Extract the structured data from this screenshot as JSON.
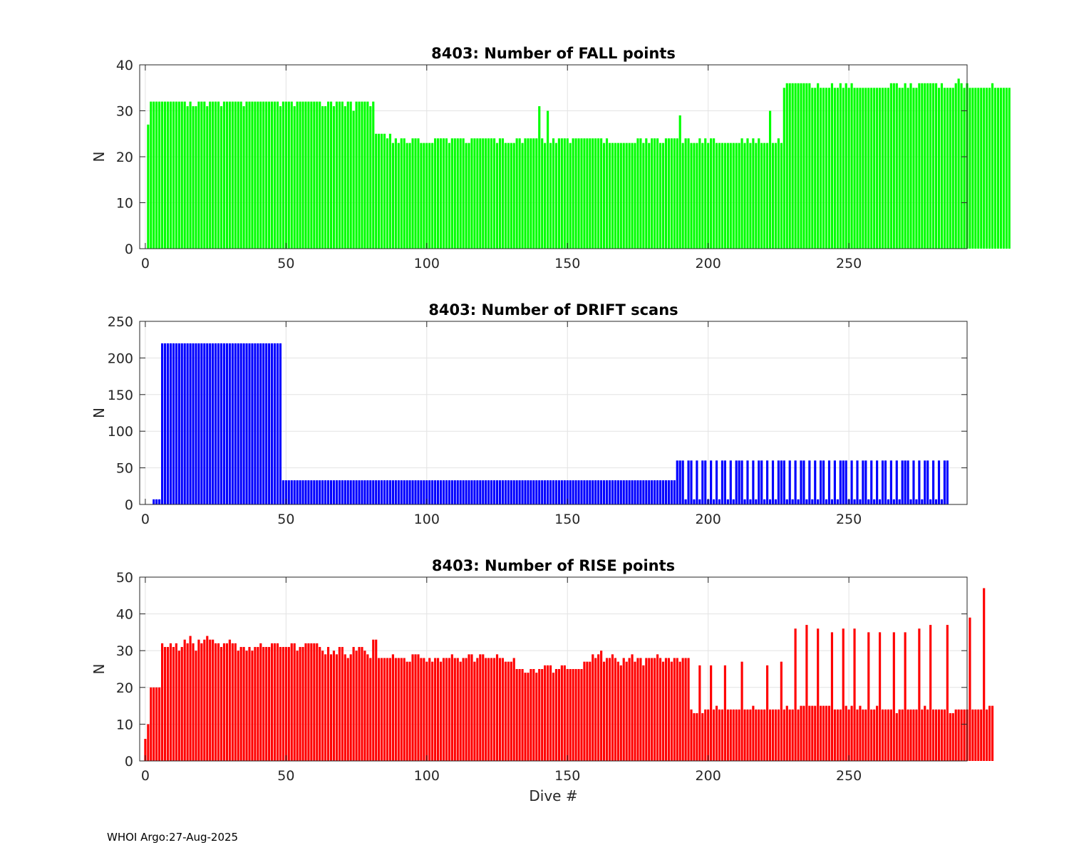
{
  "chart_data": [
    {
      "type": "bar",
      "title": "8403: Number of FALL points",
      "xlabel": "",
      "ylabel": "N",
      "xlim": [
        -2,
        292
      ],
      "ylim": [
        0,
        40
      ],
      "xticks": [
        0,
        50,
        100,
        150,
        200,
        250
      ],
      "yticks": [
        0,
        10,
        20,
        30,
        40
      ],
      "color": "#00ff00",
      "grid": true,
      "x_start": 1,
      "values": [
        27,
        32,
        32,
        32,
        32,
        32,
        32,
        32,
        32,
        32,
        32,
        32,
        32,
        32,
        31,
        32,
        31,
        31,
        32,
        32,
        32,
        31,
        32,
        32,
        32,
        32,
        31,
        32,
        32,
        32,
        32,
        32,
        32,
        32,
        31,
        32,
        32,
        32,
        32,
        32,
        32,
        32,
        32,
        32,
        32,
        32,
        32,
        31,
        32,
        32,
        32,
        32,
        31,
        32,
        32,
        32,
        32,
        32,
        32,
        32,
        32,
        32,
        31,
        31,
        32,
        32,
        31,
        32,
        32,
        32,
        31,
        32,
        32,
        30,
        32,
        32,
        32,
        32,
        32,
        31,
        32,
        25,
        25,
        25,
        25,
        24,
        25,
        23,
        24,
        23,
        24,
        24,
        23,
        23,
        24,
        24,
        24,
        23,
        23,
        23,
        23,
        23,
        24,
        24,
        24,
        24,
        24,
        23,
        24,
        24,
        24,
        24,
        24,
        23,
        23,
        24,
        24,
        24,
        24,
        24,
        24,
        24,
        24,
        24,
        23,
        24,
        24,
        23,
        23,
        23,
        23,
        24,
        24,
        23,
        24,
        24,
        24,
        24,
        24,
        31,
        24,
        23,
        30,
        23,
        24,
        23,
        24,
        24,
        24,
        24,
        23,
        24,
        24,
        24,
        24,
        24,
        24,
        24,
        24,
        24,
        24,
        24,
        23,
        24,
        23,
        23,
        23,
        23,
        23,
        23,
        23,
        23,
        23,
        23,
        24,
        24,
        23,
        24,
        23,
        24,
        24,
        24,
        23,
        23,
        24,
        24,
        24,
        24,
        24,
        29,
        23,
        24,
        24,
        23,
        23,
        23,
        24,
        23,
        24,
        23,
        24,
        24,
        23,
        23,
        23,
        23,
        23,
        23,
        23,
        23,
        23,
        24,
        23,
        24,
        23,
        24,
        23,
        24,
        23,
        23,
        23,
        30,
        23,
        23,
        24,
        23,
        35,
        36,
        36,
        36,
        36,
        36,
        36,
        36,
        36,
        36,
        35,
        35,
        36,
        35,
        35,
        35,
        35,
        36,
        35,
        35,
        36,
        35,
        36,
        35,
        36,
        35,
        35,
        35,
        35,
        35,
        35,
        35,
        35,
        35,
        35,
        35,
        35,
        35,
        36,
        36,
        36,
        35,
        35,
        36,
        35,
        36,
        35,
        35,
        36,
        36,
        36,
        36,
        36,
        36,
        36,
        35,
        36,
        35,
        35,
        35,
        35,
        36,
        37,
        36,
        35,
        36,
        35,
        35,
        35,
        35,
        35,
        35,
        35,
        35,
        36,
        35,
        35,
        35,
        35,
        35,
        35
      ]
    },
    {
      "type": "bar",
      "title": "8403: Number of DRIFT scans",
      "xlabel": "",
      "ylabel": "N",
      "xlim": [
        -2,
        292
      ],
      "ylim": [
        0,
        250
      ],
      "xticks": [
        0,
        50,
        100,
        150,
        200,
        250
      ],
      "yticks": [
        0,
        50,
        100,
        150,
        200,
        250
      ],
      "color": "#0000ff",
      "grid": true,
      "x_start": 1,
      "values": [
        0,
        0,
        7,
        7,
        7,
        220,
        220,
        220,
        220,
        220,
        220,
        220,
        220,
        220,
        220,
        220,
        220,
        220,
        220,
        220,
        220,
        220,
        220,
        220,
        220,
        220,
        220,
        220,
        220,
        220,
        220,
        220,
        220,
        220,
        220,
        220,
        220,
        220,
        220,
        220,
        220,
        220,
        220,
        220,
        220,
        220,
        220,
        220,
        33,
        33,
        33,
        33,
        33,
        33,
        33,
        33,
        33,
        33,
        33,
        33,
        33,
        33,
        33,
        33,
        33,
        33,
        33,
        33,
        33,
        33,
        33,
        33,
        33,
        33,
        33,
        33,
        33,
        33,
        33,
        33,
        33,
        33,
        33,
        33,
        33,
        33,
        33,
        33,
        33,
        33,
        33,
        33,
        33,
        33,
        33,
        33,
        33,
        33,
        33,
        33,
        33,
        33,
        33,
        33,
        33,
        33,
        33,
        33,
        33,
        33,
        33,
        33,
        33,
        33,
        33,
        33,
        33,
        33,
        33,
        33,
        33,
        33,
        33,
        33,
        33,
        33,
        33,
        33,
        33,
        33,
        33,
        33,
        33,
        33,
        33,
        33,
        33,
        33,
        33,
        33,
        33,
        33,
        33,
        33,
        33,
        33,
        33,
        33,
        33,
        33,
        33,
        33,
        33,
        33,
        33,
        33,
        33,
        33,
        33,
        33,
        33,
        33,
        33,
        33,
        33,
        33,
        33,
        33,
        33,
        33,
        33,
        33,
        33,
        33,
        33,
        33,
        33,
        33,
        33,
        33,
        33,
        33,
        33,
        33,
        33,
        33,
        33,
        33,
        60,
        60,
        60,
        7,
        60,
        60,
        7,
        60,
        7,
        60,
        60,
        7,
        60,
        7,
        60,
        7,
        60,
        60,
        7,
        60,
        7,
        60,
        60,
        60,
        7,
        60,
        7,
        60,
        7,
        60,
        60,
        7,
        60,
        7,
        60,
        7,
        60,
        60,
        60,
        7,
        60,
        7,
        60,
        7,
        60,
        60,
        7,
        60,
        7,
        60,
        7,
        60,
        60,
        7,
        60,
        7,
        60,
        7,
        60,
        60,
        60,
        7,
        60,
        7,
        60,
        7,
        60,
        60,
        7,
        60,
        7,
        60,
        7,
        60,
        60,
        7,
        60,
        7,
        60,
        7,
        60,
        60,
        60,
        7,
        60,
        7,
        60,
        7,
        60,
        60,
        7,
        60,
        7,
        60,
        7,
        60,
        60
      ]
    },
    {
      "type": "bar",
      "title": "8403: Number of RISE points",
      "xlabel": "Dive #",
      "ylabel": "N",
      "xlim": [
        -2,
        292
      ],
      "ylim": [
        0,
        50
      ],
      "xticks": [
        0,
        50,
        100,
        150,
        200,
        250
      ],
      "yticks": [
        0,
        10,
        20,
        30,
        40,
        50
      ],
      "color": "#ff0000",
      "grid": true,
      "x_start": 0,
      "values": [
        6,
        10,
        20,
        20,
        20,
        20,
        32,
        31,
        31,
        32,
        31,
        32,
        30,
        31,
        33,
        32,
        34,
        32,
        30,
        33,
        32,
        33,
        34,
        33,
        33,
        32,
        32,
        31,
        32,
        32,
        33,
        32,
        32,
        30,
        31,
        31,
        30,
        31,
        30,
        31,
        31,
        32,
        31,
        31,
        31,
        32,
        32,
        32,
        31,
        31,
        31,
        31,
        32,
        32,
        30,
        31,
        31,
        32,
        32,
        32,
        32,
        32,
        31,
        30,
        29,
        31,
        29,
        30,
        29,
        31,
        31,
        29,
        28,
        29,
        31,
        30,
        31,
        31,
        30,
        29,
        28,
        33,
        33,
        28,
        28,
        28,
        28,
        28,
        29,
        28,
        28,
        28,
        28,
        27,
        27,
        29,
        29,
        29,
        28,
        28,
        27,
        28,
        27,
        28,
        28,
        27,
        28,
        28,
        28,
        29,
        28,
        28,
        27,
        28,
        28,
        29,
        29,
        27,
        28,
        29,
        29,
        28,
        28,
        28,
        28,
        29,
        28,
        28,
        27,
        27,
        27,
        28,
        25,
        25,
        25,
        24,
        24,
        25,
        25,
        24,
        25,
        25,
        26,
        26,
        26,
        24,
        25,
        25,
        26,
        26,
        25,
        25,
        25,
        25,
        25,
        25,
        27,
        27,
        27,
        29,
        28,
        29,
        30,
        27,
        28,
        28,
        29,
        28,
        27,
        26,
        28,
        27,
        28,
        29,
        27,
        28,
        28,
        26,
        28,
        28,
        28,
        28,
        29,
        28,
        27,
        28,
        28,
        27,
        28,
        28,
        27,
        28,
        28,
        28,
        14,
        13,
        13,
        26,
        13,
        14,
        14,
        26,
        14,
        15,
        14,
        14,
        26,
        14,
        14,
        14,
        14,
        14,
        27,
        14,
        14,
        14,
        15,
        14,
        14,
        14,
        14,
        26,
        14,
        14,
        14,
        14,
        27,
        14,
        15,
        14,
        14,
        36,
        14,
        15,
        15,
        37,
        15,
        15,
        15,
        36,
        15,
        15,
        15,
        15,
        35,
        14,
        14,
        14,
        36,
        15,
        14,
        15,
        36,
        14,
        15,
        14,
        14,
        35,
        14,
        14,
        15,
        35,
        14,
        14,
        14,
        14,
        35,
        13,
        14,
        14,
        35,
        14,
        14,
        14,
        14,
        36,
        14,
        15,
        14,
        37,
        14,
        14,
        14,
        14,
        14,
        37,
        13,
        13,
        14,
        14,
        14,
        14,
        14,
        39,
        14,
        14,
        14,
        14,
        47,
        14,
        15,
        15
      ]
    }
  ],
  "footer": "WHOI Argo:27-Aug-2025"
}
